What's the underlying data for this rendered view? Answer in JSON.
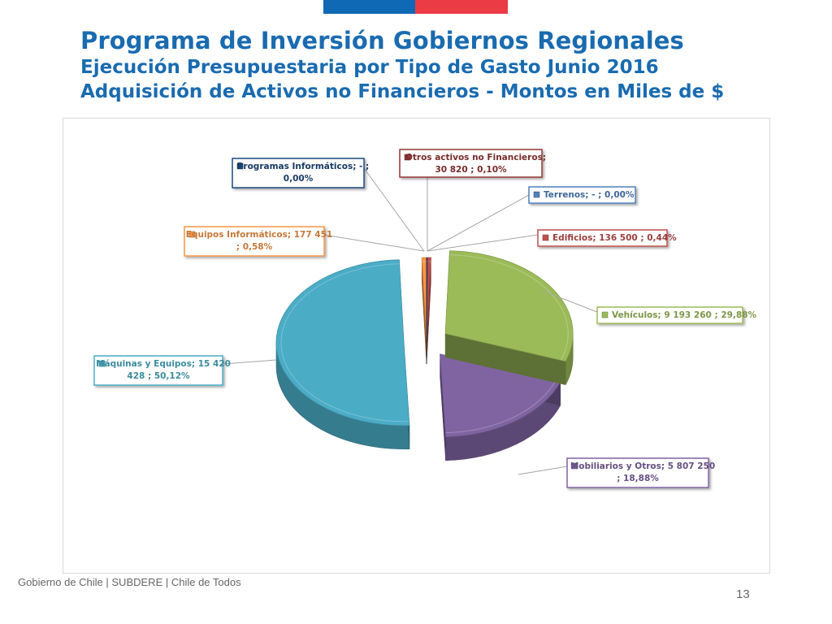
{
  "header": {
    "title": "Programa de Inversión Gobiernos Regionales",
    "subtitle1": "Ejecución Presupuestaria por Tipo de Gasto Junio 2016",
    "subtitle2": "Adquisición de Activos no Financieros - Montos en Miles de $"
  },
  "footer": {
    "text": "Gobierno de Chile | SUBDERE | Chile de Todos",
    "page_number": "13"
  },
  "colors": {
    "title": "#1a6bb0",
    "flag_blue": "#0f69b4",
    "flag_red": "#eb3c46"
  },
  "chart_data": {
    "type": "pie",
    "style": "3d-exploded",
    "unit": "Miles de $",
    "slices": [
      {
        "label": "Otros activos no Financieros; 30 820 ; 0,10%",
        "category": "Otros activos no Financieros",
        "value": 30820,
        "percent": 0.1,
        "color": "#953735"
      },
      {
        "label": "Terrenos; - ; 0,00%",
        "category": "Terrenos",
        "value": 0,
        "percent": 0.0,
        "color": "#4f81bd"
      },
      {
        "label": "Edificios; 136 500 ; 0,44%",
        "category": "Edificios",
        "value": 136500,
        "percent": 0.44,
        "color": "#c0504d"
      },
      {
        "label": "Vehículos; 9 193 260 ; 29,88%",
        "category": "Vehículos",
        "value": 9193260,
        "percent": 29.88,
        "color": "#9bbb59"
      },
      {
        "label": "Mobiliarios y Otros; 5 807 250 ; 18,88%",
        "category": "Mobiliarios y Otros",
        "value": 5807250,
        "percent": 18.88,
        "color": "#8064a2"
      },
      {
        "label": "Máquinas y Equipos; 15 420 428 ; 50,12%",
        "category": "Máquinas y Equipos",
        "value": 15420428,
        "percent": 50.12,
        "color": "#4bacc6"
      },
      {
        "label": "Equipos Informáticos; 177 451 ; 0,58%",
        "category": "Equipos Informáticos",
        "value": 177451,
        "percent": 0.58,
        "color": "#f79646"
      },
      {
        "label": "Programas Informáticos; - ; 0,00%",
        "category": "Programas Informáticos",
        "value": 0,
        "percent": 0.0,
        "color": "#1f497d"
      }
    ]
  }
}
